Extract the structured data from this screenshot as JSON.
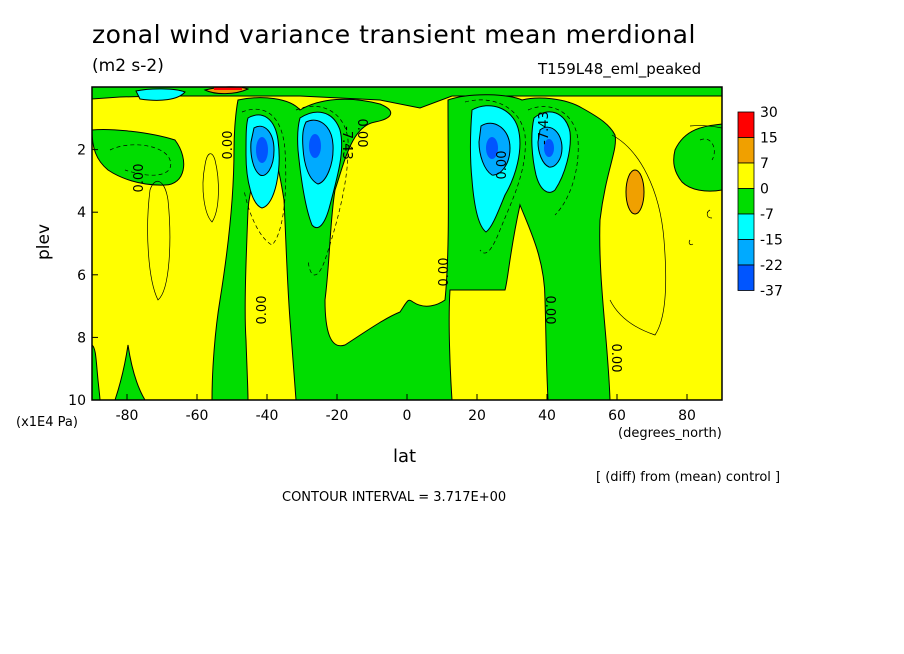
{
  "title": "zonal wind variance transient mean merdional",
  "units": "(m2 s-2)",
  "run_id": "T159L48_eml_peaked",
  "footer": {
    "diff_note": "[ (diff) from (mean) control ]",
    "contour_interval": "CONTOUR INTERVAL = 3.717E+00"
  },
  "colors": {
    "red": "#ff0000",
    "orange": "#f0a000",
    "yellow": "#ffff00",
    "green": "#00dd00",
    "cyan": "#00ffff",
    "lightblue": "#00aaff",
    "blue": "#0055ff"
  },
  "chart_data": {
    "type": "heatmap",
    "xlabel": "lat",
    "x_units": "(degrees_north)",
    "ylabel": "plev",
    "y_units": "(x1E4 Pa)",
    "xlim": [
      -90,
      90
    ],
    "ylim": [
      10,
      0
    ],
    "x_ticks": [
      -80,
      -60,
      -40,
      -20,
      0,
      20,
      40,
      60,
      80
    ],
    "y_ticks": [
      2,
      4,
      6,
      8,
      10
    ],
    "legend": {
      "position": "right",
      "levels": [
        "30",
        "15",
        "7",
        "0",
        "-7",
        "-15",
        "-22",
        "-37"
      ],
      "colors": [
        "#ff0000",
        "#f0a000",
        "#ffff00",
        "#00dd00",
        "#00ffff",
        "#00aaff",
        "#0055ff"
      ]
    },
    "contour_labels": [
      "0.00",
      "0.00",
      "-7.43",
      "0.00",
      "0.00",
      "0.00",
      "0.00",
      "-7.43",
      "0.00",
      "0.00",
      "0.00"
    ]
  }
}
